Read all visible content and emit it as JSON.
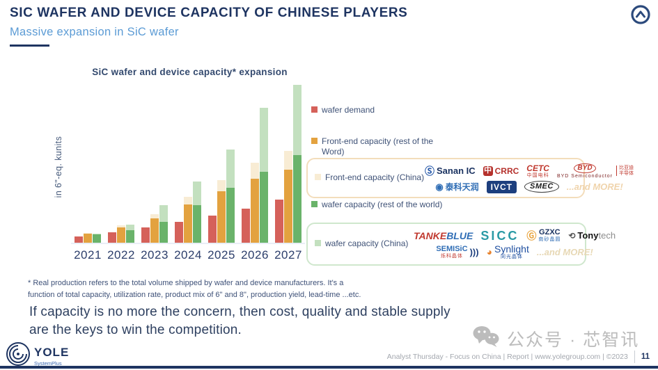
{
  "header": {
    "title": "SIC WAFER AND DEVICE CAPACITY OF CHINESE PLAYERS",
    "subtitle": "Massive expansion in SiC wafer"
  },
  "chart_data": {
    "type": "bar",
    "title": "SiC wafer and device capacity* expansion",
    "ylabel": "in 6\"-eq. kunits",
    "xlabel": "",
    "categories": [
      "2021",
      "2022",
      "2023",
      "2024",
      "2025",
      "2026",
      "2027"
    ],
    "series": [
      {
        "name": "wafer demand",
        "color": "#d5615a",
        "stack": "demand",
        "values": [
          90,
          150,
          210,
          290,
          380,
          480,
          600
        ]
      },
      {
        "name": "Front-end capacity (rest of the Word)",
        "color": "#e3a23f",
        "stack": "front-end",
        "values": [
          130,
          210,
          340,
          540,
          720,
          900,
          1020
        ]
      },
      {
        "name": "Front-end capacity (China)",
        "color": "#f8ecd4",
        "stack": "front-end",
        "values": [
          10,
          30,
          60,
          110,
          160,
          220,
          260
        ]
      },
      {
        "name": "wafer capacity (rest of the world)",
        "color": "#6ab36a",
        "stack": "wafer",
        "values": [
          120,
          180,
          290,
          530,
          770,
          990,
          1230
        ]
      },
      {
        "name": "wafer capacity (China)",
        "color": "#c3e0bf",
        "stack": "wafer",
        "values": [
          10,
          80,
          230,
          330,
          540,
          900,
          980
        ]
      }
    ],
    "ylim": [
      0,
      2300
    ],
    "axis_ticks_visible": false,
    "legend_position": "right",
    "note": "values in 6-inch-equivalent kunits estimated from bar heights; y-axis shows no tick labels"
  },
  "legend": {
    "items": [
      {
        "label": "wafer demand"
      },
      {
        "label": "Front-end capacity (rest of the Word)"
      },
      {
        "label": "Front-end capacity (China)"
      },
      {
        "label": "wafer capacity (rest of the world)"
      },
      {
        "label": "wafer capacity (China)"
      }
    ]
  },
  "partner_boxes": [
    {
      "name": "front-end-china-partners",
      "rows": [
        [
          {
            "name": "sanan-ic-logo",
            "icon": {
              "glyph": "Ⓢ",
              "color": "#2356a8",
              "size": 14
            },
            "parts": [
              {
                "text": "Sanan IC",
                "color": "#18305f",
                "bold": true,
                "size": 13
              }
            ]
          },
          {
            "name": "crrc-logo",
            "icon": {
              "glyph": "中",
              "color": "#ffffff",
              "bg": "#b5312c"
            },
            "parts": [
              {
                "text": "CRRC",
                "color": "#b5312c",
                "bold": true,
                "size": 12
              }
            ]
          },
          {
            "name": "cetc-logo",
            "parts": [
              {
                "text": "CETC",
                "color": "#c0392f",
                "bold": true,
                "italic": true,
                "size": 12
              }
            ],
            "sub": {
              "text": "中国电科",
              "color": "#c0392f"
            }
          },
          {
            "name": "byd-semiconductor-logo",
            "parts": [
              {
                "text": "BYD",
                "color": "#c0392f",
                "bold": true,
                "italic": true,
                "size": 10,
                "oval": true
              }
            ],
            "side": {
              "lines": [
                "比亚迪",
                "半导体"
              ],
              "color": "#c0392f"
            },
            "sub": {
              "text": "BYD Semiconductor",
              "color": "#7a1d1d"
            }
          }
        ],
        [
          {
            "name": "global-power-technology-logo",
            "icon": {
              "glyph": "◉",
              "color": "#2f6db5",
              "size": 13
            },
            "parts": [
              {
                "text": "泰科天润",
                "color": "#2f6db5",
                "bold": true,
                "size": 12
              }
            ]
          },
          {
            "name": "ivct-logo",
            "bg": "#1d3f7e",
            "radius": "3px",
            "pad": "3px 6px",
            "parts": [
              {
                "text": "IVCT",
                "color": "#ffffff",
                "bold": true,
                "size": 12,
                "ls": 1
              }
            ]
          },
          {
            "name": "smec-logo",
            "border": "#3a3a3a",
            "radius": "50%",
            "pad": "2px 7px",
            "parts": [
              {
                "text": "SMEC",
                "color": "#1a1a1a",
                "bold": true,
                "italic": true,
                "size": 11,
                "ls": 0.5
              }
            ]
          },
          {
            "name": "and-more-label",
            "parts": [
              {
                "text": "...and MORE!",
                "color": "#f0d4ac",
                "bold": true,
                "italic": true,
                "size": 13
              }
            ]
          }
        ]
      ]
    },
    {
      "name": "wafer-china-partners",
      "rows": [
        [
          {
            "name": "tankeblue-logo",
            "parts": [
              {
                "text": "TANKE",
                "color": "#c0392f",
                "bold": true,
                "italic": true,
                "size": 14
              },
              {
                "text": "BLUE",
                "color": "#2f6db5",
                "bold": true,
                "italic": true,
                "size": 14
              }
            ]
          },
          {
            "name": "sicc-logo",
            "parts": [
              {
                "text": "SICC",
                "color": "#2a9aa5",
                "bold": true,
                "size": 18,
                "ls": 3
              }
            ]
          },
          {
            "name": "gzxc-logo",
            "icon": {
              "glyph": "Ⓖ",
              "color": "#e8a33c",
              "size": 14
            },
            "parts": [
              {
                "text": "GZXC",
                "color": "#17305e",
                "bold": true,
                "size": 11
              }
            ],
            "sub": {
              "text": "南砂晶圆",
              "color": "#2f6db5"
            }
          },
          {
            "name": "tonytech-logo",
            "icon": {
              "glyph": "⟲",
              "color": "#555555",
              "size": 12
            },
            "parts": [
              {
                "text": "Tony",
                "color": "#141414",
                "bold": true,
                "size": 13
              },
              {
                "text": "tech",
                "color": "#8c8c8c",
                "size": 13
              }
            ]
          }
        ],
        [
          {
            "name": "semisic-logo",
            "parts": [
              {
                "text": "SEMISiC",
                "color": "#2f6db5",
                "bold": true,
                "size": 11
              }
            ],
            "sub": {
              "text": "烁科晶体",
              "color": "#c0392f"
            },
            "iconAfter": {
              "glyph": ")))",
              "color": "#1d3f7e",
              "size": 13
            }
          },
          {
            "name": "synlight-logo",
            "icon": {
              "glyph": "◕",
              "color": "#e8832e",
              "size": 14
            },
            "parts": [
              {
                "text": "Synlight",
                "color": "#1f4fa0",
                "size": 14
              }
            ],
            "sub": {
              "text": "同光晶体",
              "color": "#1f4fa0"
            }
          },
          {
            "name": "and-more-label",
            "parts": [
              {
                "text": "...and MORE!",
                "color": "#e7d8b5",
                "bold": true,
                "italic": true,
                "size": 13
              }
            ]
          }
        ]
      ]
    }
  ],
  "footnote": {
    "lines": [
      "* Real production refers to the total volume shipped by wafer and device manufacturers. It's a",
      "function of total capacity, utilization rate, product mix of 6\" and 8\", production yield, lead-time ...etc."
    ]
  },
  "quote": {
    "lines": [
      "If capacity is no more the concern, then cost, quality and stable supply",
      "are the keys to win the competition."
    ]
  },
  "watermark": {
    "text": "公众号 · 芯智讯"
  },
  "footer": {
    "brand": "YOLE",
    "brand_sub": "SystemPlus",
    "meta": "Analyst Thursday - Focus on China | Report | www.yolegroup.com | ©2023",
    "page": "11"
  }
}
